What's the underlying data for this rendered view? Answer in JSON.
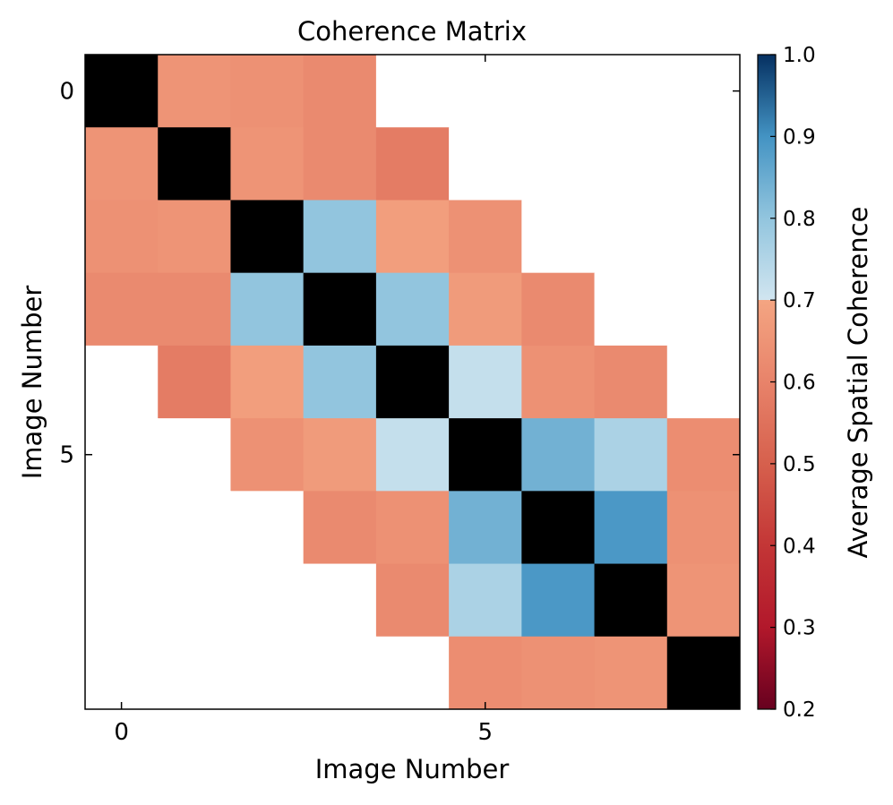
{
  "chart_data": {
    "type": "heatmap",
    "title": "Coherence Matrix",
    "xlabel": "Image Number",
    "ylabel": "Image Number",
    "x_ticks": [
      0,
      5
    ],
    "y_ticks": [
      0,
      5
    ],
    "diagonal_color": "#000000",
    "missing_color": "#ffffff",
    "colorbar": {
      "label": "Average Spatial Coherence",
      "range": [
        0.2,
        1.0
      ],
      "ticks": [
        "0.2",
        "0.3",
        "0.4",
        "0.5",
        "0.6",
        "0.7",
        "0.8",
        "0.9",
        "1.0"
      ],
      "colormap": "RdBu",
      "stops": [
        {
          "v": 0.2,
          "c": "#67001f"
        },
        {
          "v": 0.3,
          "c": "#b2182b"
        },
        {
          "v": 0.4,
          "c": "#c33636"
        },
        {
          "v": 0.5,
          "c": "#d6604d"
        },
        {
          "v": 0.6,
          "c": "#e8836a"
        },
        {
          "v": 0.7,
          "c": "#f4a582"
        },
        {
          "v": 0.7,
          "c": "#d1e5f0"
        },
        {
          "v": 0.8,
          "c": "#92c5de"
        },
        {
          "v": 0.9,
          "c": "#4393c3"
        },
        {
          "v": 1.0,
          "c": "#053061"
        }
      ]
    },
    "matrix": [
      [
        null,
        0.65,
        0.64,
        0.62,
        null,
        null,
        null,
        null,
        null
      ],
      [
        0.65,
        null,
        0.65,
        0.62,
        0.58,
        null,
        null,
        null,
        null
      ],
      [
        0.64,
        0.65,
        null,
        0.8,
        0.68,
        0.64,
        null,
        null,
        null
      ],
      [
        0.62,
        0.62,
        0.8,
        null,
        0.8,
        0.67,
        0.62,
        null,
        null
      ],
      [
        null,
        0.58,
        0.68,
        0.8,
        null,
        0.72,
        0.64,
        0.62,
        null
      ],
      [
        null,
        null,
        0.64,
        0.67,
        0.72,
        null,
        0.84,
        0.76,
        0.63
      ],
      [
        null,
        null,
        null,
        0.62,
        0.64,
        0.84,
        null,
        0.89,
        0.64
      ],
      [
        null,
        null,
        null,
        null,
        0.62,
        0.76,
        0.89,
        null,
        0.65
      ],
      [
        null,
        null,
        null,
        null,
        null,
        0.63,
        0.64,
        0.65,
        null
      ]
    ]
  }
}
